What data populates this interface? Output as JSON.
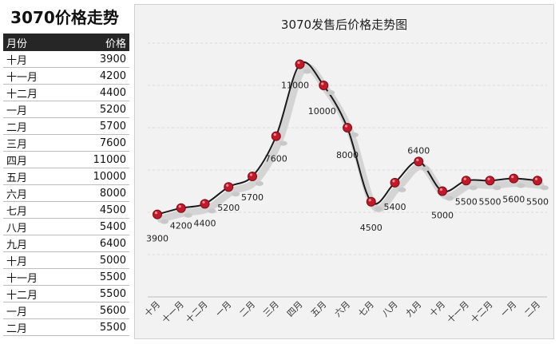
{
  "sheet": {
    "title": "3070价格走势",
    "col_month": "月份",
    "col_price": "价格"
  },
  "table_rows": [
    {
      "month": "十月",
      "price": "3900"
    },
    {
      "month": "十一月",
      "price": "4200"
    },
    {
      "month": "十二月",
      "price": "4400"
    },
    {
      "month": "一月",
      "price": "5200"
    },
    {
      "month": "二月",
      "price": "5700"
    },
    {
      "month": "三月",
      "price": "7600"
    },
    {
      "month": "四月",
      "price": "11000"
    },
    {
      "month": "五月",
      "price": "10000"
    },
    {
      "month": "六月",
      "price": "8000"
    },
    {
      "month": "七月",
      "price": "4500"
    },
    {
      "month": "八月",
      "price": "5400"
    },
    {
      "month": "九月",
      "price": "6400"
    },
    {
      "month": "十月",
      "price": "5000"
    },
    {
      "month": "十一月",
      "price": "5500"
    },
    {
      "month": "十二月",
      "price": "5500"
    },
    {
      "month": "一月",
      "price": "5600"
    },
    {
      "month": "二月",
      "price": "5500"
    }
  ],
  "chart_data": {
    "type": "line",
    "title": "3070发售后价格走势图",
    "xlabel": "",
    "ylabel": "",
    "categories": [
      "十月",
      "十一月",
      "十二月",
      "一月",
      "二月",
      "三月",
      "四月",
      "五月",
      "六月",
      "七月",
      "八月",
      "九月",
      "十月",
      "十一月",
      "十二月",
      "一月",
      "二月"
    ],
    "series": [
      {
        "values": [
          3900,
          4200,
          4400,
          5200,
          5700,
          7600,
          11000,
          10000,
          8000,
          4500,
          5400,
          6400,
          5000,
          5500,
          5500,
          5600,
          5500
        ]
      }
    ],
    "ylim": [
      0,
      12000
    ],
    "grid": true,
    "data_labels": true,
    "colors": {
      "line": "#1a1a1a",
      "marker": "#c0192a",
      "grid": "#d9d9d9",
      "panel": "#f2f2f2"
    }
  }
}
